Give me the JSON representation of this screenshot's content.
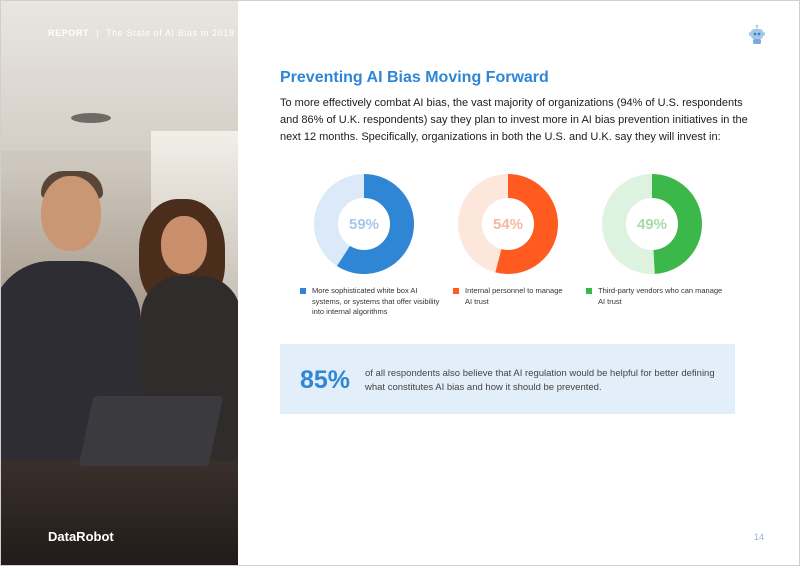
{
  "header": {
    "report_label": "REPORT",
    "separator": "|",
    "report_title": "The State of AI Bias in 2019"
  },
  "brand": {
    "logo_text": "DataRobot"
  },
  "main": {
    "heading": "Preventing AI Bias Moving Forward",
    "intro": "To more effectively combat AI bias, the vast majority of organizations (94% of U.S. respondents and 86% of U.K. respondents) say they plan to invest more in AI bias prevention initiatives in the next 12 months. Specifically, organizations in both the U.S. and U.K. say they will invest in:"
  },
  "donuts": [
    {
      "value": 59,
      "label": "59%",
      "color": "#2f86d5",
      "track": "#dbe9f9",
      "legend": "More sophisticated white box AI systems, or systems that  offer visibility into internal algorithms"
    },
    {
      "value": 54,
      "label": "54%",
      "color": "#ff5a1f",
      "track": "#fde6dc",
      "legend": "Internal personnel to manage AI trust"
    },
    {
      "value": 49,
      "label": "49%",
      "color": "#3cb84a",
      "track": "#def3df",
      "legend": "Third-party vendors who can manage AI trust"
    }
  ],
  "callout": {
    "value": "85%",
    "text": "of all respondents also believe that AI regulation would be helpful for better defining what constitutes AI bias and how it should be prevented."
  },
  "footer": {
    "page_number": "14"
  },
  "icons": {
    "top_right": "robot-icon"
  }
}
